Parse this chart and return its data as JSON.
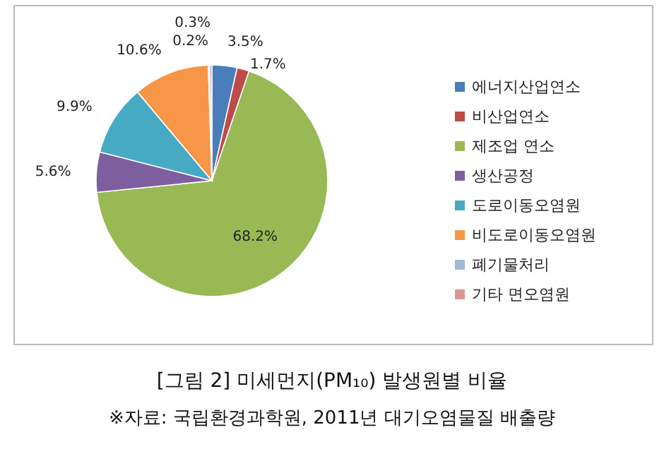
{
  "chart_data": {
    "type": "pie",
    "title": "[그림 2] 미세먼지(PM₁₀) 발생원별 비율",
    "annotations": [
      "※자료: 국립환경과학원, 2011년 대기오염물질 배출량"
    ],
    "categories": [
      "에너지산업연소",
      "비산업연소",
      "제조업 연소",
      "생산공정",
      "도로이동오염원",
      "비도로이동오염원",
      "폐기물처리",
      "기타 면오염원"
    ],
    "values": [
      3.5,
      1.7,
      68.2,
      5.6,
      9.9,
      10.6,
      0.2,
      0.3
    ],
    "value_labels": [
      "3.5%",
      "1.7%",
      "68.2%",
      "5.6%",
      "9.9%",
      "10.6%",
      "0.2%",
      "0.3%"
    ],
    "colors": [
      "#4a7ebb",
      "#be4b48",
      "#98b954",
      "#7d5fa0",
      "#46aac5",
      "#f79646",
      "#a5b7d7",
      "#d99694"
    ],
    "legend": "right"
  }
}
